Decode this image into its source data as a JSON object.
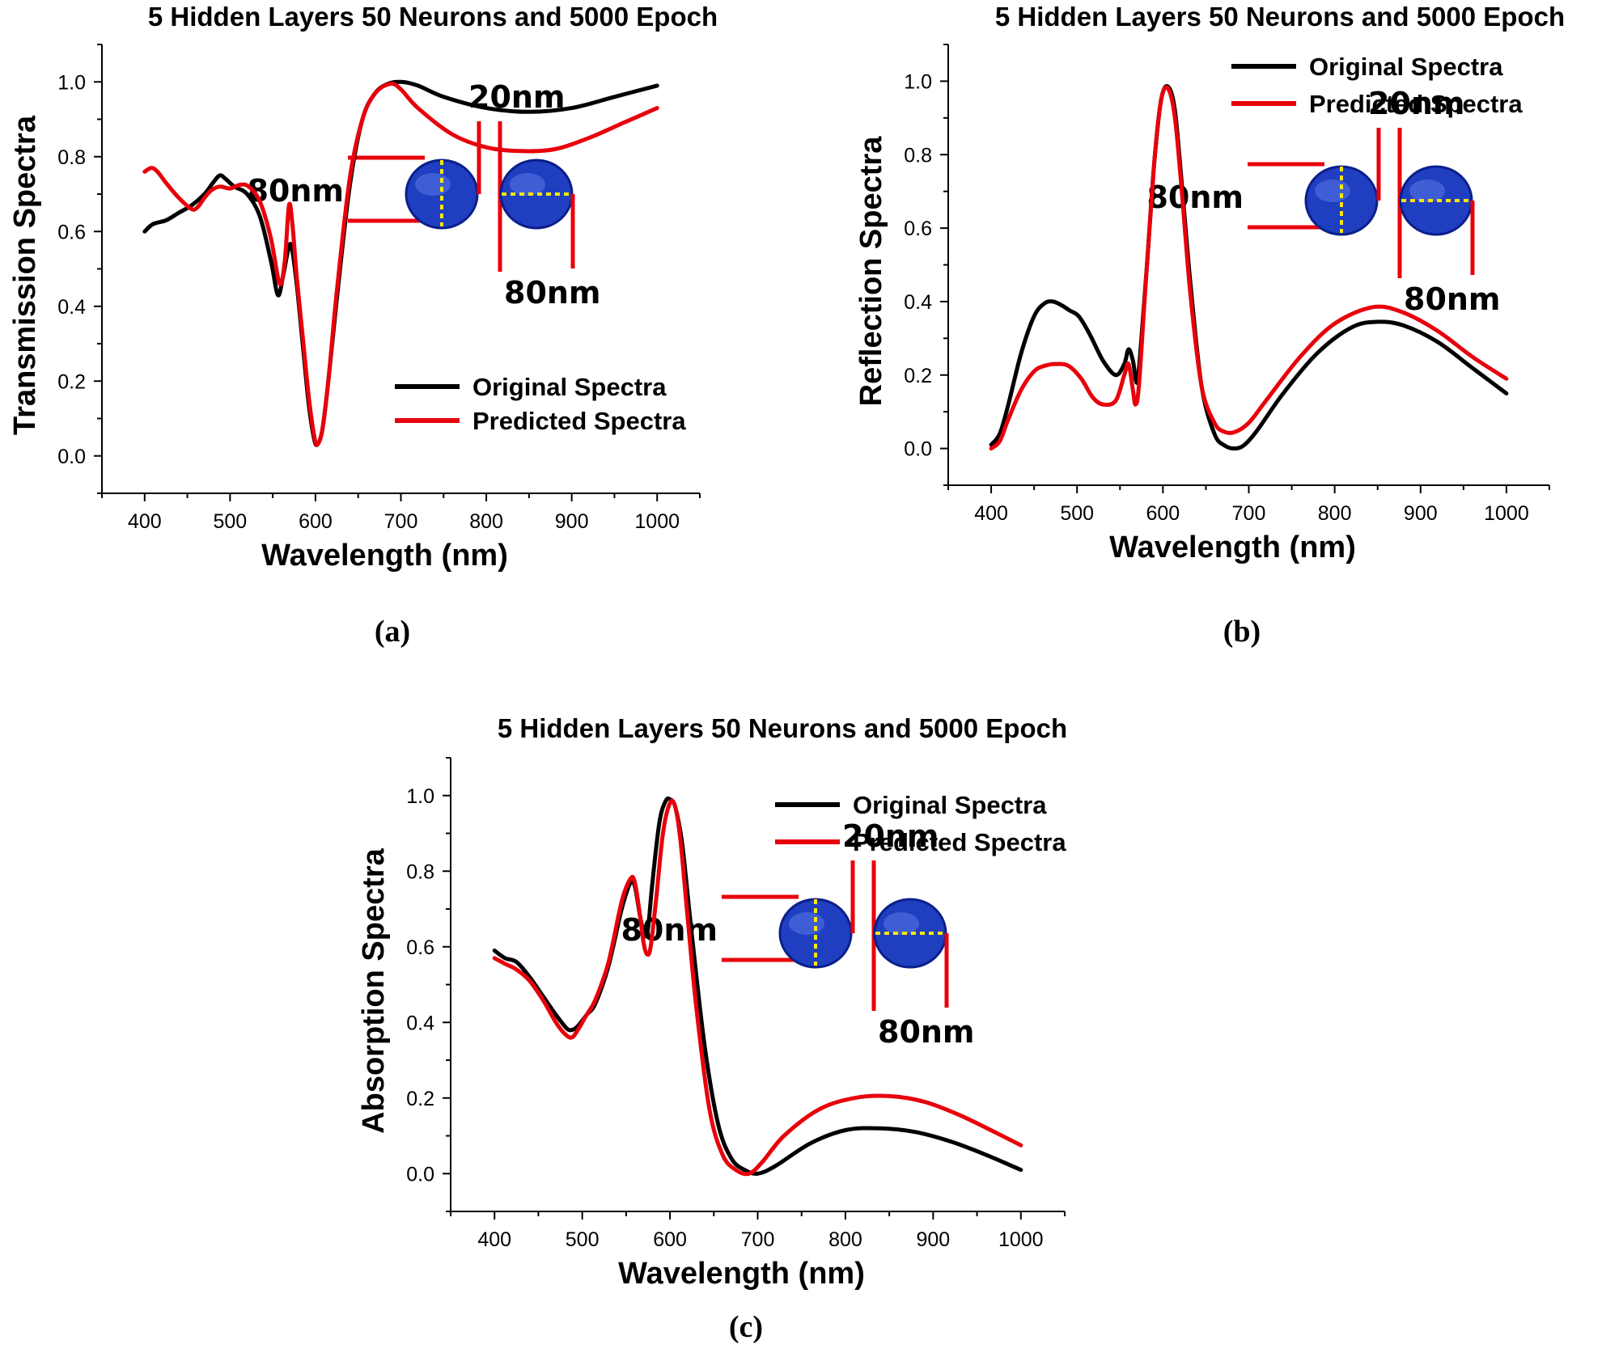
{
  "colors": {
    "original": "#000000",
    "predicted": "#e8000b",
    "particle": "#1f3fc0",
    "particle_edge": "#0a1f8a",
    "dimension_bar": "#e8000b",
    "dashed_axis": "#ffe600"
  },
  "chart_data": [
    {
      "id": "a",
      "type": "line",
      "caption": "(a)",
      "title": "5 Hidden Layers 50 Neurons and 5000 Epoch",
      "xlabel": "Wavelength (nm)",
      "ylabel": "Transmission Spectra",
      "xlim": [
        350,
        1050
      ],
      "ylim": [
        -0.1,
        1.1
      ],
      "xticks": [
        400,
        500,
        600,
        700,
        800,
        900,
        1000
      ],
      "yticks": [
        0.0,
        0.2,
        0.4,
        0.6,
        0.8,
        1.0
      ],
      "xtick_labels": [
        "400",
        "500",
        "600",
        "700",
        "800",
        "900",
        "1000"
      ],
      "ytick_labels": [
        "0.0",
        "0.2",
        "0.4",
        "0.6",
        "0.8",
        "1.0"
      ],
      "legend": [
        "Original Spectra",
        "Predicted Spectra"
      ],
      "legend_position": "lower-right",
      "series": [
        {
          "name": "Original Spectra",
          "color": "#000000",
          "x": [
            400,
            410,
            425,
            440,
            455,
            470,
            480,
            488,
            495,
            505,
            520,
            535,
            548,
            556,
            562,
            568,
            572,
            578,
            585,
            592,
            598,
            602,
            608,
            615,
            625,
            640,
            655,
            670,
            685,
            700,
            720,
            750,
            800,
            850,
            900,
            950,
            1000
          ],
          "y": [
            0.6,
            0.62,
            0.63,
            0.65,
            0.67,
            0.7,
            0.73,
            0.75,
            0.74,
            0.72,
            0.7,
            0.64,
            0.52,
            0.43,
            0.48,
            0.55,
            0.56,
            0.46,
            0.3,
            0.14,
            0.05,
            0.03,
            0.07,
            0.2,
            0.42,
            0.72,
            0.9,
            0.97,
            0.995,
            1.0,
            0.99,
            0.96,
            0.93,
            0.92,
            0.93,
            0.96,
            0.99
          ]
        },
        {
          "name": "Predicted Spectra",
          "color": "#e8000b",
          "x": [
            400,
            408,
            415,
            425,
            440,
            455,
            462,
            470,
            478,
            488,
            500,
            512,
            522,
            535,
            548,
            558,
            564,
            569,
            573,
            578,
            585,
            592,
            598,
            602,
            608,
            615,
            625,
            640,
            655,
            670,
            688,
            700,
            720,
            760,
            800,
            840,
            880,
            920,
            960,
            1000
          ],
          "y": [
            0.76,
            0.77,
            0.76,
            0.73,
            0.69,
            0.66,
            0.665,
            0.69,
            0.71,
            0.72,
            0.715,
            0.725,
            0.72,
            0.68,
            0.58,
            0.46,
            0.52,
            0.67,
            0.62,
            0.48,
            0.32,
            0.16,
            0.06,
            0.03,
            0.07,
            0.2,
            0.44,
            0.74,
            0.9,
            0.97,
            0.995,
            0.98,
            0.93,
            0.86,
            0.825,
            0.815,
            0.82,
            0.85,
            0.89,
            0.93
          ]
        }
      ],
      "inset": {
        "dim_left": "80nm",
        "dim_top": "20nm",
        "dim_bottom": "80nm"
      }
    },
    {
      "id": "b",
      "type": "line",
      "caption": "(b)",
      "title": "5 Hidden Layers 50 Neurons and 5000 Epoch",
      "xlabel": "Wavelength (nm)",
      "ylabel": "Reflection Spectra",
      "xlim": [
        350,
        1050
      ],
      "ylim": [
        -0.1,
        1.1
      ],
      "xticks": [
        400,
        500,
        600,
        700,
        800,
        900,
        1000
      ],
      "yticks": [
        0.0,
        0.2,
        0.4,
        0.6,
        0.8,
        1.0
      ],
      "xtick_labels": [
        "400",
        "500",
        "600",
        "700",
        "800",
        "900",
        "1000"
      ],
      "ytick_labels": [
        "0.0",
        "0.2",
        "0.4",
        "0.6",
        "0.8",
        "1.0"
      ],
      "legend": [
        "Original Spectra",
        "Predicted Spectra"
      ],
      "legend_position": "top-right",
      "series": [
        {
          "name": "Original Spectra",
          "color": "#000000",
          "x": [
            400,
            410,
            420,
            435,
            450,
            462,
            472,
            482,
            492,
            502,
            515,
            530,
            545,
            555,
            560,
            565,
            570,
            575,
            582,
            590,
            598,
            606,
            614,
            622,
            632,
            645,
            660,
            672,
            684,
            695,
            710,
            740,
            780,
            820,
            850,
            880,
            920,
            960,
            1000
          ],
          "y": [
            0.01,
            0.04,
            0.12,
            0.26,
            0.36,
            0.395,
            0.4,
            0.39,
            0.375,
            0.36,
            0.31,
            0.24,
            0.2,
            0.23,
            0.27,
            0.24,
            0.18,
            0.3,
            0.52,
            0.78,
            0.95,
            0.985,
            0.92,
            0.72,
            0.45,
            0.17,
            0.04,
            0.008,
            0.0,
            0.01,
            0.05,
            0.15,
            0.26,
            0.33,
            0.345,
            0.335,
            0.29,
            0.22,
            0.15
          ]
        },
        {
          "name": "Predicted Spectra",
          "color": "#e8000b",
          "x": [
            400,
            410,
            420,
            435,
            450,
            462,
            475,
            490,
            505,
            518,
            530,
            545,
            555,
            560,
            565,
            568,
            572,
            580,
            590,
            598,
            606,
            614,
            622,
            632,
            645,
            660,
            672,
            684,
            700,
            720,
            760,
            800,
            845,
            880,
            920,
            960,
            1000
          ],
          "y": [
            0.0,
            0.02,
            0.08,
            0.16,
            0.21,
            0.225,
            0.23,
            0.225,
            0.19,
            0.14,
            0.12,
            0.13,
            0.2,
            0.23,
            0.16,
            0.12,
            0.17,
            0.45,
            0.78,
            0.95,
            0.98,
            0.9,
            0.7,
            0.42,
            0.17,
            0.07,
            0.045,
            0.045,
            0.07,
            0.13,
            0.25,
            0.34,
            0.385,
            0.37,
            0.32,
            0.25,
            0.19
          ]
        }
      ],
      "inset": {
        "dim_left": "80nm",
        "dim_top": "20nm",
        "dim_bottom": "80nm"
      }
    },
    {
      "id": "c",
      "type": "line",
      "caption": "(c)",
      "title": "5 Hidden Layers 50 Neurons and 5000 Epoch",
      "xlabel": "Wavelength (nm)",
      "ylabel": "Absorption Spectra",
      "xlim": [
        350,
        1050
      ],
      "ylim": [
        -0.1,
        1.1
      ],
      "xticks": [
        400,
        500,
        600,
        700,
        800,
        900,
        1000
      ],
      "yticks": [
        0.0,
        0.2,
        0.4,
        0.6,
        0.8,
        1.0
      ],
      "xtick_labels": [
        "400",
        "500",
        "600",
        "700",
        "800",
        "900",
        "1000"
      ],
      "ytick_labels": [
        "0.0",
        "0.2",
        "0.4",
        "0.6",
        "0.8",
        "1.0"
      ],
      "legend": [
        "Original Spectra",
        "Predicted Spectra"
      ],
      "legend_position": "top-right",
      "series": [
        {
          "name": "Original Spectra",
          "color": "#000000",
          "x": [
            400,
            412,
            425,
            440,
            455,
            470,
            482,
            488,
            495,
            505,
            515,
            530,
            545,
            555,
            560,
            566,
            571,
            575,
            580,
            588,
            595,
            600,
            606,
            614,
            625,
            640,
            655,
            670,
            685,
            700,
            720,
            760,
            800,
            840,
            880,
            920,
            960,
            1000
          ],
          "y": [
            0.59,
            0.57,
            0.56,
            0.52,
            0.47,
            0.42,
            0.385,
            0.38,
            0.39,
            0.42,
            0.45,
            0.55,
            0.7,
            0.77,
            0.76,
            0.68,
            0.63,
            0.65,
            0.77,
            0.93,
            0.985,
            0.99,
            0.97,
            0.87,
            0.63,
            0.33,
            0.13,
            0.04,
            0.01,
            0.0,
            0.02,
            0.08,
            0.115,
            0.12,
            0.11,
            0.085,
            0.05,
            0.01
          ]
        },
        {
          "name": "Predicted Spectra",
          "color": "#e8000b",
          "x": [
            400,
            412,
            425,
            440,
            455,
            470,
            480,
            488,
            495,
            505,
            515,
            530,
            545,
            555,
            560,
            566,
            570,
            574,
            578,
            584,
            592,
            600,
            606,
            612,
            620,
            630,
            645,
            660,
            675,
            690,
            705,
            730,
            770,
            810,
            850,
            890,
            930,
            970,
            1000
          ],
          "y": [
            0.57,
            0.555,
            0.54,
            0.51,
            0.46,
            0.4,
            0.37,
            0.36,
            0.38,
            0.42,
            0.46,
            0.56,
            0.72,
            0.78,
            0.77,
            0.68,
            0.61,
            0.58,
            0.6,
            0.72,
            0.9,
            0.98,
            0.97,
            0.88,
            0.68,
            0.44,
            0.17,
            0.05,
            0.01,
            0.0,
            0.03,
            0.1,
            0.17,
            0.2,
            0.205,
            0.19,
            0.155,
            0.11,
            0.075
          ]
        }
      ],
      "inset": {
        "dim_left": "80nm",
        "dim_top": "20nm",
        "dim_bottom": "80nm"
      }
    }
  ]
}
